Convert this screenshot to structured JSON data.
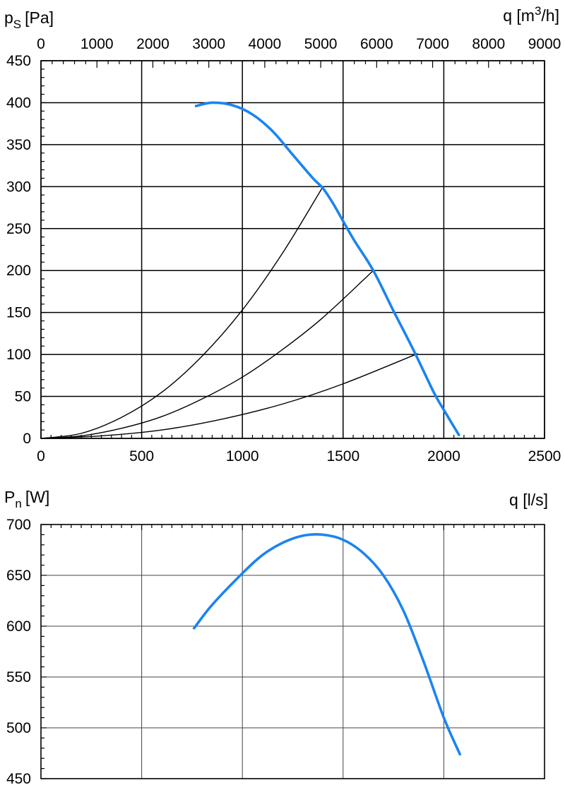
{
  "chart_data": [
    {
      "type": "line",
      "ylabel_symbol": "p",
      "ylabel_sub": "S",
      "ylabel_unit": "[Pa]",
      "x2label_prefix": "q [m",
      "x2label_sup": "3",
      "x2label_suffix": "/h]",
      "xlim": [
        0,
        2500
      ],
      "ylim": [
        0,
        450
      ],
      "x_ticks": [
        "0",
        "500",
        "1000",
        "1500",
        "2000",
        "2500"
      ],
      "x2_ticks": [
        "0",
        "1000",
        "2000",
        "3000",
        "4000",
        "5000",
        "6000",
        "7000",
        "8000",
        "9000"
      ],
      "y_ticks": [
        "0",
        "50",
        "100",
        "150",
        "200",
        "250",
        "300",
        "350",
        "400",
        "450"
      ],
      "grid": true,
      "series": [
        {
          "role": "fan-curve",
          "color": "#1a84f0",
          "x": [
            770,
            850,
            950,
            1050,
            1150,
            1250,
            1350,
            1400,
            1450,
            1550,
            1650,
            1750,
            1850,
            1950,
            2000,
            2075
          ],
          "y": [
            396,
            400,
            397,
            386,
            366,
            338,
            310,
            298,
            280,
            238,
            200,
            152,
            105,
            55,
            34,
            4
          ]
        },
        {
          "role": "system-curve",
          "color": "#000000",
          "x": [
            0,
            200,
            400,
            600,
            800,
            1000,
            1200,
            1400
          ],
          "y": [
            0,
            6,
            25,
            55,
            98,
            153,
            221,
            300
          ]
        },
        {
          "role": "system-curve",
          "color": "#000000",
          "x": [
            0,
            200,
            400,
            600,
            800,
            1000,
            1200,
            1400,
            1650
          ],
          "y": [
            0,
            3,
            12,
            26,
            47,
            73,
            106,
            144,
            200
          ]
        },
        {
          "role": "system-curve",
          "color": "#000000",
          "x": [
            0,
            300,
            600,
            900,
            1200,
            1500,
            1870
          ],
          "y": [
            0,
            3,
            10,
            23,
            41,
            65,
            101
          ]
        }
      ]
    },
    {
      "type": "line",
      "ylabel_symbol": "P",
      "ylabel_sub": "n",
      "ylabel_unit": "[W]",
      "xlabel": "q [l/s]",
      "xlim": [
        0,
        2500
      ],
      "ylim": [
        450,
        700
      ],
      "y_ticks": [
        "450",
        "500",
        "550",
        "600",
        "650",
        "700"
      ],
      "grid": true,
      "series": [
        {
          "role": "power-curve",
          "color": "#1a84f0",
          "x": [
            760,
            850,
            1000,
            1100,
            1200,
            1300,
            1400,
            1500,
            1600,
            1700,
            1800,
            1900,
            2000,
            2080
          ],
          "y": [
            598,
            621,
            652,
            670,
            682,
            689,
            690,
            685,
            672,
            650,
            615,
            565,
            510,
            474
          ]
        }
      ]
    }
  ]
}
